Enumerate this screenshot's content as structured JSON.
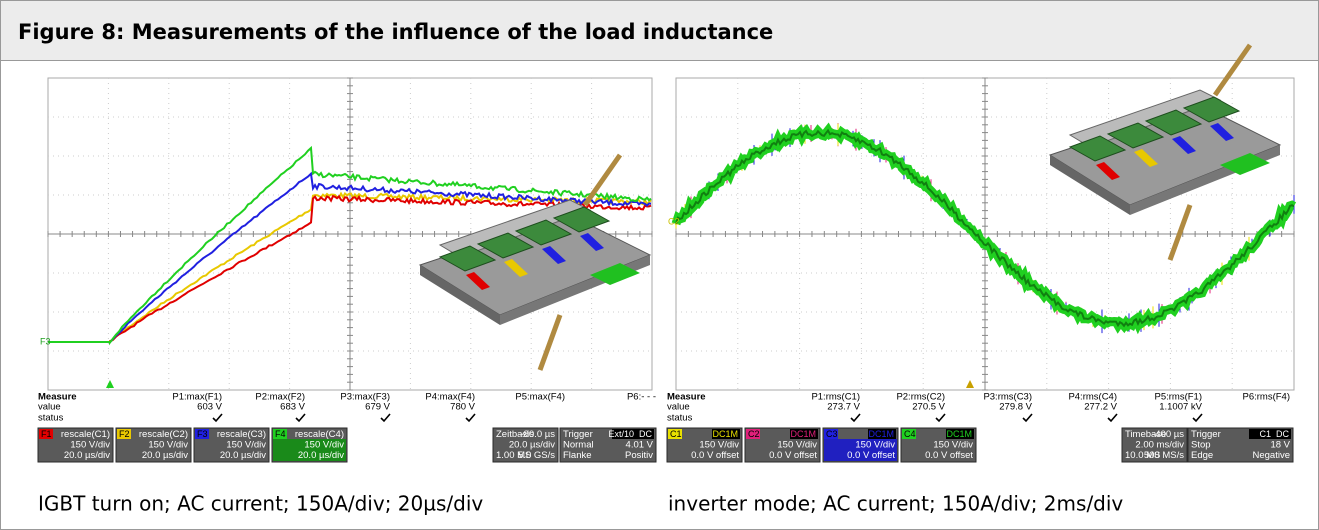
{
  "title": "Figure 8: Measurements of the influence of the load inductance",
  "panels": [
    {
      "trace_marker": "F3",
      "measure": {
        "heading": "Measure",
        "value_label": "value",
        "status_label": "status",
        "params": [
          {
            "name": "P1:max(F1)",
            "value": "603 V"
          },
          {
            "name": "P2:max(F2)",
            "value": "683 V"
          },
          {
            "name": "P3:max(F3)",
            "value": "679 V"
          },
          {
            "name": "P4:max(F4)",
            "value": "780 V"
          },
          {
            "name": "P5:max(F4)"
          },
          {
            "name": "P6:- - -"
          }
        ]
      },
      "channels": [
        {
          "tag": "F1",
          "label": "rescale(C1)",
          "vdiv": "150 V/div",
          "hdiv": "20.0 µs/div",
          "color": "#e00000"
        },
        {
          "tag": "F2",
          "label": "rescale(C2)",
          "vdiv": "150 V/div",
          "hdiv": "20.0 µs/div",
          "color": "#e8c800"
        },
        {
          "tag": "F3",
          "label": "rescale(C3)",
          "vdiv": "150 V/div",
          "hdiv": "20.0 µs/div",
          "color": "#2020e0"
        },
        {
          "tag": "F4",
          "label": "rescale(C4)",
          "vdiv": "150 V/div",
          "hdiv": "20.0 µs/div",
          "color": "#20d020"
        }
      ],
      "timebase": {
        "title": "Zeitbasis",
        "offset": "-80.0 µs",
        "div": "20.0 µs/div",
        "samples": "1.00 MS",
        "rate": "5.0 GS/s"
      },
      "trigger": {
        "title": "Trigger",
        "source": "Ext/10",
        "coupling": "DC",
        "mode": "Normal",
        "level": "4.01 V",
        "slope_label": "Flanke",
        "slope": "Positiv"
      },
      "caption": "IGBT turn on; AC current; 150A/div; 20µs/div"
    },
    {
      "trace_marker": "C2",
      "measure": {
        "heading": "Measure",
        "value_label": "value",
        "status_label": "status",
        "params": [
          {
            "name": "P1:rms(C1)",
            "value": "273.7 V"
          },
          {
            "name": "P2:rms(C2)",
            "value": "270.5 V"
          },
          {
            "name": "P3:rms(C3)",
            "value": "279.8 V"
          },
          {
            "name": "P4:rms(C4)",
            "value": "277.2 V"
          },
          {
            "name": "P5:rms(F1)",
            "value": "1.1007 kV"
          },
          {
            "name": "P6:rms(F4)"
          }
        ]
      },
      "channels": [
        {
          "tag": "C1",
          "coupling": "DC1M",
          "vdiv": "150 V/div",
          "offset": "0.0 V offset",
          "color": "#e8e000"
        },
        {
          "tag": "C2",
          "coupling": "DC1M",
          "vdiv": "150 V/div",
          "offset": "0.0 V offset",
          "color": "#e0207a"
        },
        {
          "tag": "C3",
          "coupling": "DC1M",
          "vdiv": "150 V/div",
          "offset": "0.0 V offset",
          "color": "#2020e0"
        },
        {
          "tag": "C4",
          "coupling": "DC1M",
          "vdiv": "150 V/div",
          "offset": "0.0 V offset",
          "color": "#20d020"
        }
      ],
      "timebase": {
        "title": "Timebase",
        "offset": "-400 µs",
        "div": "2.00 ms/div",
        "samples": "10.0 MS",
        "rate": "500 MS/s"
      },
      "trigger": {
        "title": "Trigger",
        "source": "C1",
        "coupling": "DC",
        "mode": "Stop",
        "level": "18 V",
        "slope_label": "Edge",
        "slope": "Negative"
      },
      "caption": "inverter mode; AC current; 150A/div; 2ms/div"
    }
  ]
}
